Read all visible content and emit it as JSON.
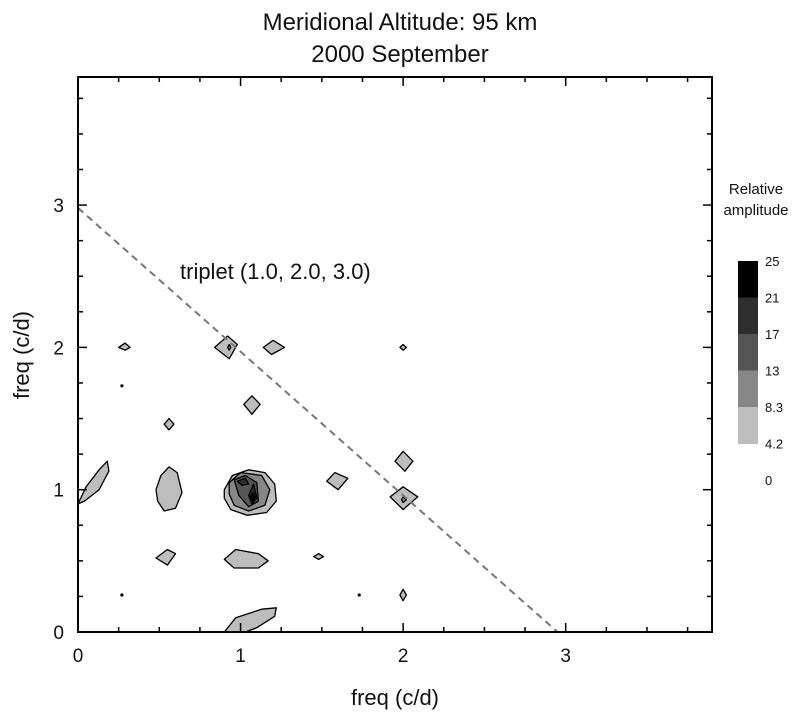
{
  "chart_data": {
    "type": "contour",
    "title": "Meridional  Altitude: 95 km",
    "subtitle": "2000  September",
    "xlabel": "freq (c/d)",
    "ylabel": "freq (c/d)",
    "xlim": [
      0,
      3.9
    ],
    "ylim": [
      0,
      3.9
    ],
    "xticks": [
      "0",
      "1",
      "2",
      "3"
    ],
    "yticks": [
      "0",
      "1",
      "2",
      "3"
    ],
    "minor_tick_step": 0.25,
    "annotation": "triplet (1.0, 2.0, 3.0)",
    "triplet_line": {
      "x": [
        0,
        2.95
      ],
      "y": [
        2.98,
        0
      ]
    },
    "colorbar": {
      "title_line1": "Relative",
      "title_line2": "amplitude",
      "levels": [
        "25",
        "21",
        "17",
        "13",
        "8.3",
        "4.2",
        "0"
      ],
      "colors": [
        "#000000",
        "#2e2e2e",
        "#555555",
        "#878787",
        "#bdbdbd"
      ]
    },
    "regions": [
      {
        "level": 1,
        "points": [
          [
            0,
            0.9
          ],
          [
            0.05,
            1.02
          ],
          [
            0.13,
            1.14
          ],
          [
            0.18,
            1.2
          ],
          [
            0.19,
            1.13
          ],
          [
            0.13,
            1.0
          ],
          [
            0.04,
            0.92
          ]
        ]
      },
      {
        "level": 1,
        "points": [
          [
            0.25,
            2.0
          ],
          [
            0.29,
            2.03
          ],
          [
            0.32,
            2.0
          ],
          [
            0.29,
            1.98
          ]
        ]
      },
      {
        "level": 1,
        "points": [
          [
            0.53,
            1.46
          ],
          [
            0.56,
            1.5
          ],
          [
            0.59,
            1.46
          ],
          [
            0.56,
            1.42
          ]
        ]
      },
      {
        "level": 1,
        "points": [
          [
            0.48,
            1.0
          ],
          [
            0.51,
            1.1
          ],
          [
            0.56,
            1.16
          ],
          [
            0.61,
            1.12
          ],
          [
            0.64,
            0.98
          ],
          [
            0.6,
            0.87
          ],
          [
            0.53,
            0.85
          ],
          [
            0.49,
            0.92
          ]
        ]
      },
      {
        "level": 1,
        "points": [
          [
            0.48,
            0.52
          ],
          [
            0.55,
            0.58
          ],
          [
            0.6,
            0.55
          ],
          [
            0.55,
            0.47
          ]
        ]
      },
      {
        "level": 1,
        "points": [
          [
            0.84,
            2.0
          ],
          [
            0.92,
            2.08
          ],
          [
            0.98,
            2.02
          ],
          [
            0.93,
            1.92
          ]
        ]
      },
      {
        "level": 2,
        "points": [
          [
            0.92,
            2.0
          ],
          [
            0.93,
            2.02
          ],
          [
            0.94,
            2.0
          ],
          [
            0.93,
            1.98
          ]
        ]
      },
      {
        "level": 1,
        "points": [
          [
            1.14,
            2.0
          ],
          [
            1.2,
            2.05
          ],
          [
            1.27,
            2.0
          ],
          [
            1.19,
            1.95
          ]
        ]
      },
      {
        "level": 1,
        "points": [
          [
            1.02,
            1.6
          ],
          [
            1.07,
            1.66
          ],
          [
            1.12,
            1.6
          ],
          [
            1.07,
            1.53
          ]
        ]
      },
      {
        "level": 1,
        "points": [
          [
            0.9,
            1.0
          ],
          [
            0.95,
            1.1
          ],
          [
            1.05,
            1.14
          ],
          [
            1.15,
            1.12
          ],
          [
            1.21,
            1.04
          ],
          [
            1.22,
            0.92
          ],
          [
            1.16,
            0.84
          ],
          [
            1.04,
            0.82
          ],
          [
            0.94,
            0.86
          ],
          [
            0.9,
            0.94
          ]
        ]
      },
      {
        "level": 2,
        "points": [
          [
            0.93,
            1.05
          ],
          [
            1.0,
            1.12
          ],
          [
            1.13,
            1.1
          ],
          [
            1.18,
            1.0
          ],
          [
            1.15,
            0.89
          ],
          [
            1.05,
            0.85
          ],
          [
            0.96,
            0.89
          ],
          [
            0.93,
            0.97
          ]
        ]
      },
      {
        "level": 3,
        "points": [
          [
            0.96,
            1.07
          ],
          [
            1.03,
            1.1
          ],
          [
            1.1,
            1.05
          ],
          [
            1.11,
            0.92
          ],
          [
            1.05,
            0.88
          ],
          [
            0.99,
            0.96
          ]
        ]
      },
      {
        "level": 4,
        "points": [
          [
            0.98,
            1.06
          ],
          [
            1.03,
            1.08
          ],
          [
            1.05,
            1.04
          ],
          [
            1.01,
            1.03
          ]
        ]
      },
      {
        "level": 4,
        "points": [
          [
            1.05,
            0.96
          ],
          [
            1.08,
            1.04
          ],
          [
            1.1,
            0.94
          ],
          [
            1.07,
            0.9
          ]
        ]
      },
      {
        "level": 5,
        "points": [
          [
            1.06,
            0.95
          ],
          [
            1.075,
            0.98
          ],
          [
            1.09,
            0.95
          ],
          [
            1.075,
            0.92
          ]
        ]
      },
      {
        "level": 1,
        "points": [
          [
            0.9,
            0.51
          ],
          [
            0.97,
            0.58
          ],
          [
            1.11,
            0.55
          ],
          [
            1.17,
            0.5
          ],
          [
            1.11,
            0.45
          ],
          [
            0.96,
            0.45
          ]
        ]
      },
      {
        "level": 1,
        "points": [
          [
            0.9,
            0.0
          ],
          [
            0.97,
            0.1
          ],
          [
            1.13,
            0.16
          ],
          [
            1.22,
            0.17
          ],
          [
            1.21,
            0.11
          ],
          [
            1.1,
            0.03
          ],
          [
            1.03,
            0.0
          ]
        ]
      },
      {
        "level": 1,
        "points": [
          [
            1.45,
            0.53
          ],
          [
            1.48,
            0.55
          ],
          [
            1.51,
            0.53
          ],
          [
            1.48,
            0.51
          ]
        ]
      },
      {
        "level": 1,
        "points": [
          [
            1.53,
            1.06
          ],
          [
            1.58,
            1.12
          ],
          [
            1.66,
            1.08
          ],
          [
            1.6,
            1.0
          ]
        ]
      },
      {
        "level": 1,
        "points": [
          [
            1.95,
            1.2
          ],
          [
            2.0,
            1.27
          ],
          [
            2.06,
            1.2
          ],
          [
            2.01,
            1.13
          ]
        ]
      },
      {
        "level": 1,
        "points": [
          [
            1.92,
            0.95
          ],
          [
            2.0,
            1.02
          ],
          [
            2.09,
            0.95
          ],
          [
            2.0,
            0.86
          ]
        ]
      },
      {
        "level": 2,
        "points": [
          [
            1.99,
            0.93
          ],
          [
            2.0,
            0.95
          ],
          [
            2.02,
            0.93
          ],
          [
            2.0,
            0.91
          ]
        ]
      },
      {
        "level": 1,
        "points": [
          [
            1.98,
            2.0
          ],
          [
            2.0,
            2.02
          ],
          [
            2.02,
            2.0
          ],
          [
            2.0,
            1.98
          ]
        ]
      },
      {
        "level": 1,
        "points": [
          [
            1.98,
            0.26
          ],
          [
            2.0,
            0.3
          ],
          [
            2.02,
            0.26
          ],
          [
            2.0,
            0.22
          ]
        ]
      }
    ],
    "dots": [
      {
        "x": 0.27,
        "y": 1.73
      },
      {
        "x": 0.27,
        "y": 0.26
      },
      {
        "x": 1.73,
        "y": 0.26
      }
    ]
  }
}
